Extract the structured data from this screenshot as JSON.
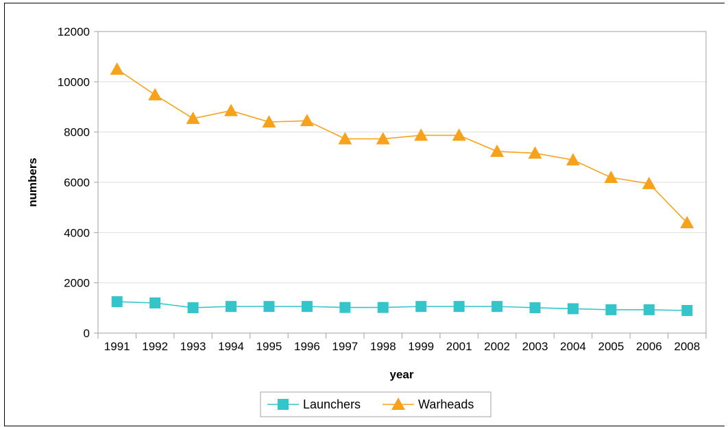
{
  "chart_data": {
    "type": "line",
    "title": "",
    "xlabel": "year",
    "ylabel": "numbers",
    "categories": [
      "1991",
      "1992",
      "1993",
      "1994",
      "1995",
      "1996",
      "1997",
      "1998",
      "1999",
      "2001",
      "2002",
      "2003",
      "2004",
      "2005",
      "2006",
      "2008"
    ],
    "ylim": [
      0,
      12000
    ],
    "yticks": [
      0,
      2000,
      4000,
      6000,
      8000,
      10000,
      12000
    ],
    "grid": true,
    "legend_position": "bottom",
    "series": [
      {
        "name": "Launchers",
        "color": "#33c5c9",
        "marker": "square",
        "values": [
          1250,
          1200,
          1010,
          1060,
          1060,
          1060,
          1020,
          1020,
          1060,
          1060,
          1060,
          1010,
          970,
          930,
          930,
          900
        ]
      },
      {
        "name": "Warheads",
        "color": "#f7a21a",
        "marker": "triangle",
        "values": [
          10500,
          9480,
          8540,
          8850,
          8400,
          8450,
          7730,
          7730,
          7870,
          7870,
          7230,
          7160,
          6890,
          6190,
          5950,
          4390
        ]
      }
    ]
  }
}
